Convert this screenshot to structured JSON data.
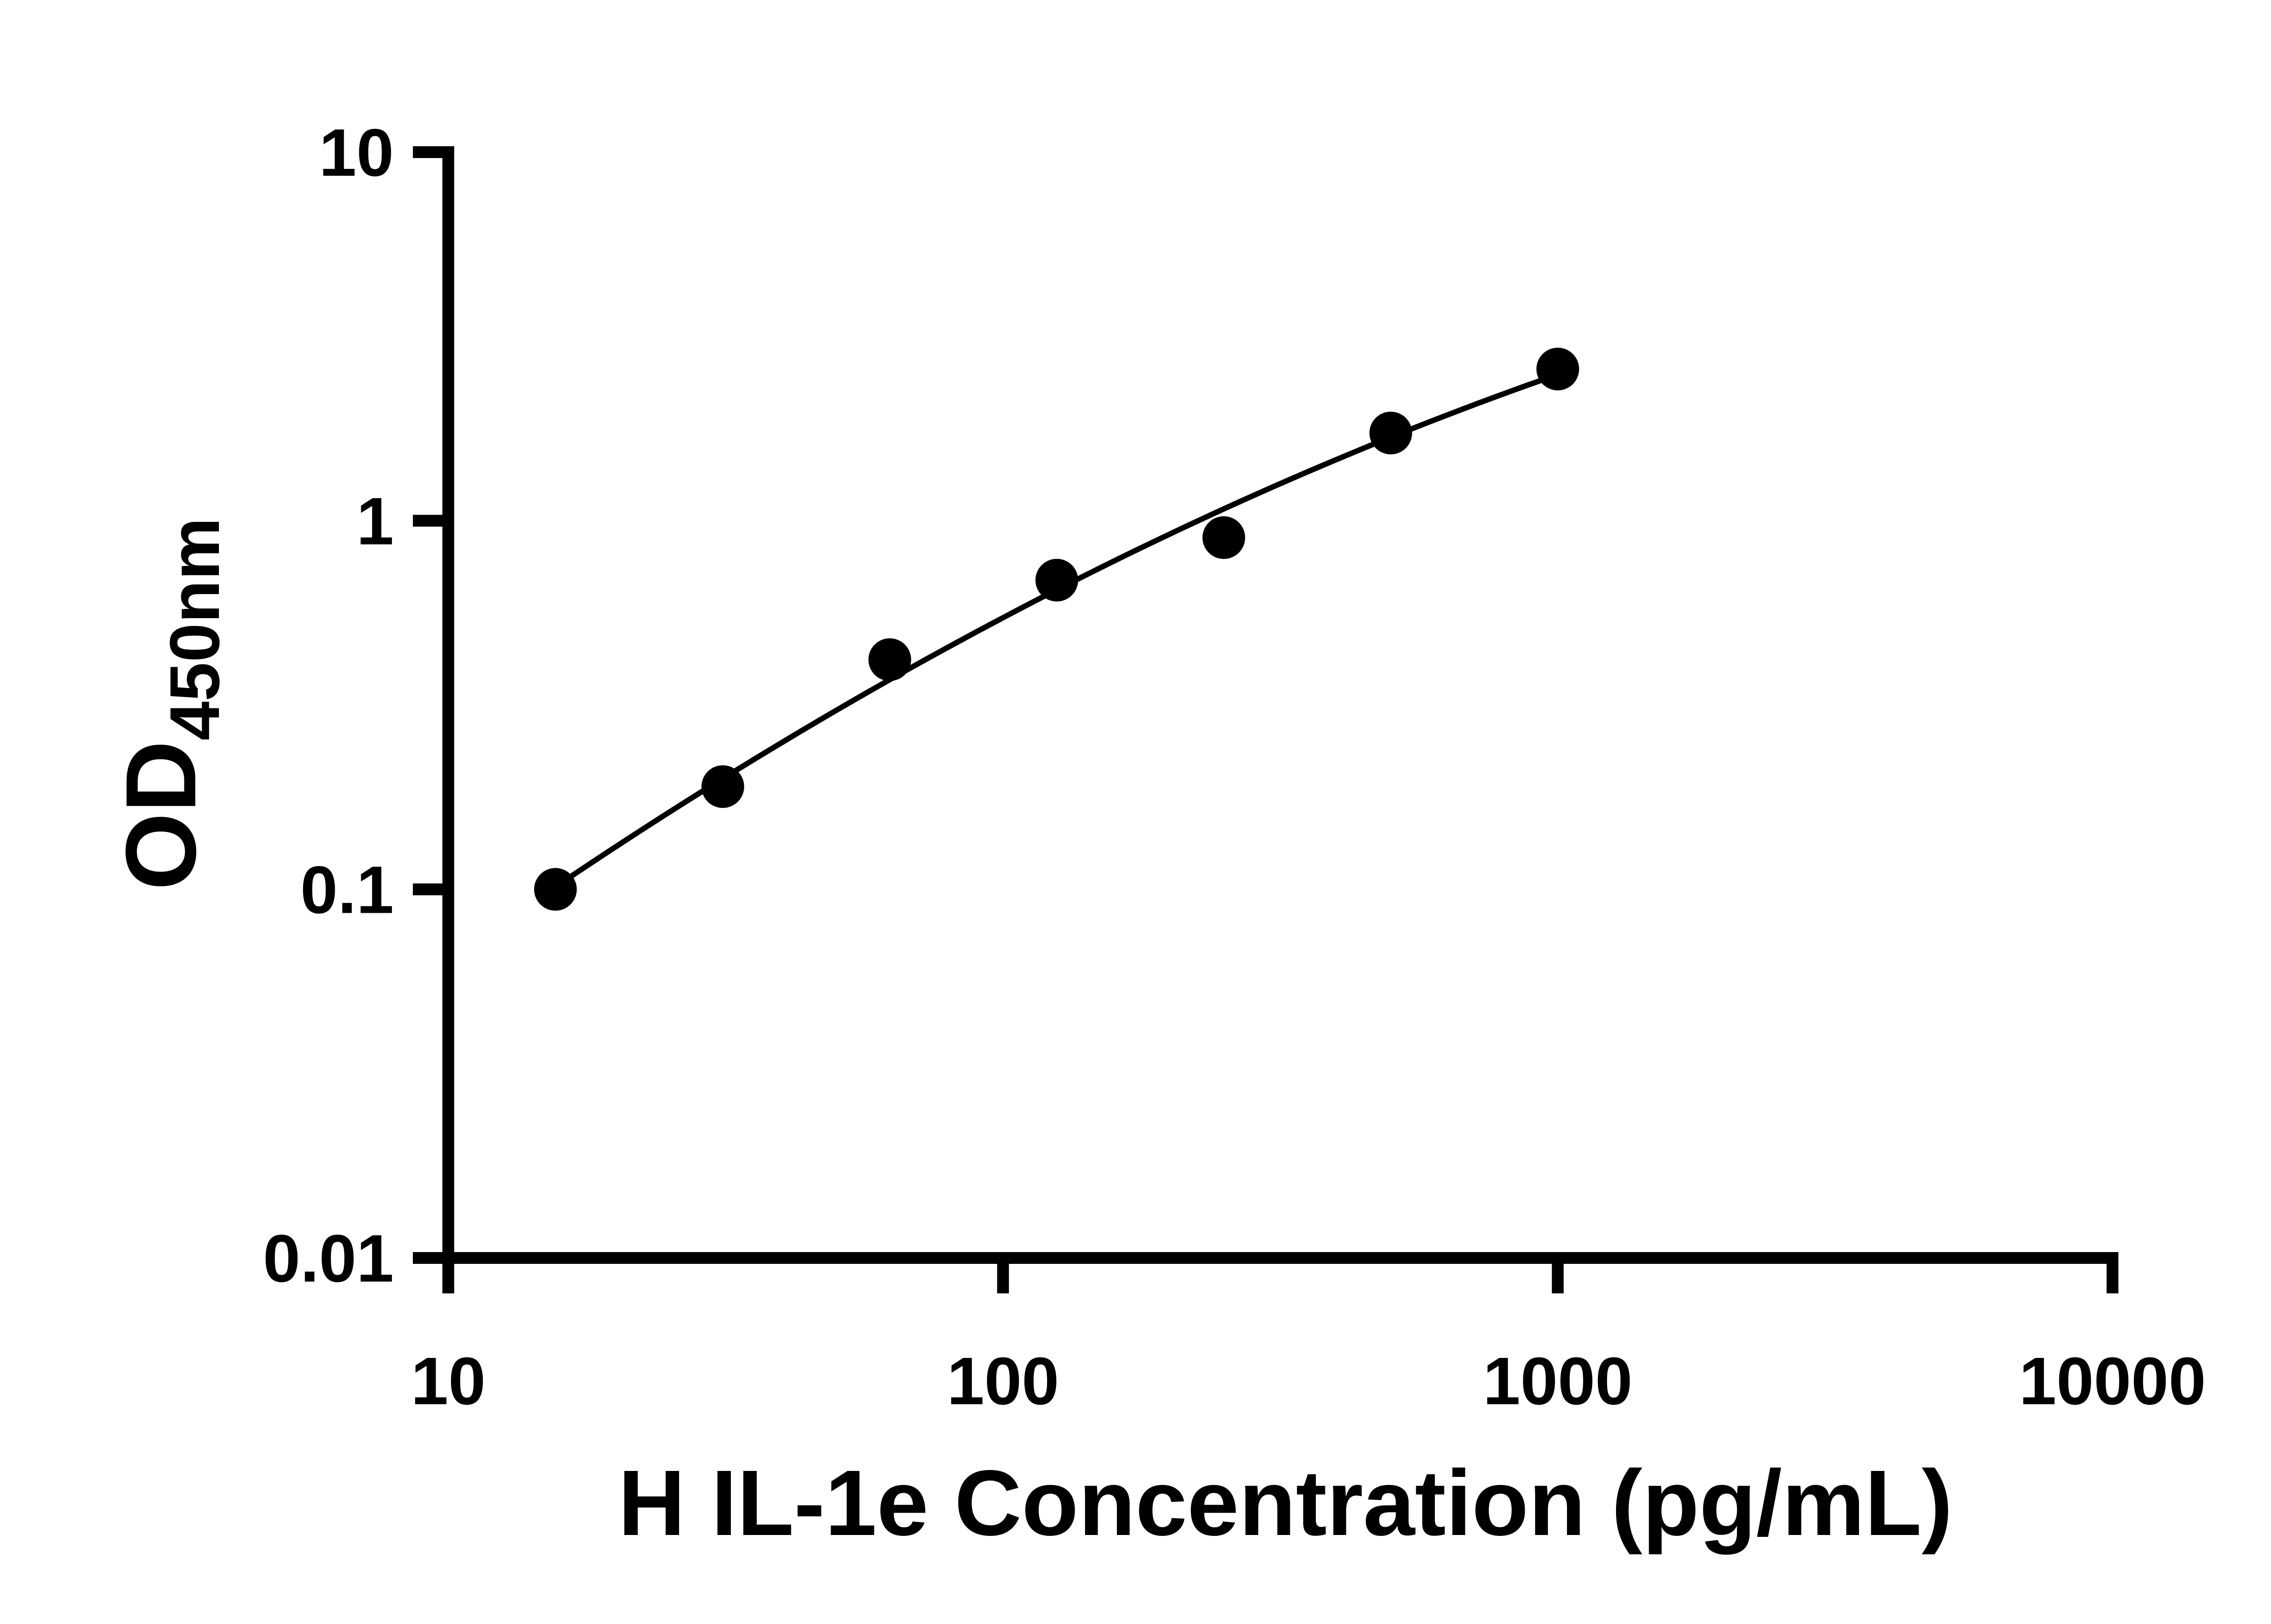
{
  "figure": {
    "background": "#ffffff",
    "axis_color": "#000000"
  },
  "chart_data": {
    "type": "scatter",
    "title": "",
    "xlabel": "H IL-1e Concentration (pg/mL)",
    "ylabel_main": "OD",
    "ylabel_subscript": "450nm",
    "x_scale": "log10",
    "y_scale": "log10",
    "xlim": [
      10,
      10000
    ],
    "ylim": [
      0.01,
      10
    ],
    "x_ticks": [
      10,
      100,
      1000,
      10000
    ],
    "x_tick_labels": [
      "10",
      "100",
      "1000",
      "10000"
    ],
    "y_ticks": [
      0.01,
      0.1,
      1,
      10
    ],
    "y_tick_labels": [
      "0.01",
      "0.1",
      "1",
      "10"
    ],
    "grid": false,
    "legend": false,
    "series": [
      {
        "name": "standard-curve-points",
        "marker": "circle",
        "marker_color": "#000000",
        "x": [
          15.6,
          31.25,
          62.5,
          125,
          250,
          500,
          1000
        ],
        "y": [
          0.1,
          0.19,
          0.42,
          0.69,
          0.9,
          1.73,
          2.58
        ]
      }
    ],
    "fit_line": {
      "color": "#000000",
      "x_range": [
        15.1,
        1000
      ],
      "log10_poly_coeffs": [
        -2.3966,
        1.3382,
        -0.1357
      ]
    }
  }
}
